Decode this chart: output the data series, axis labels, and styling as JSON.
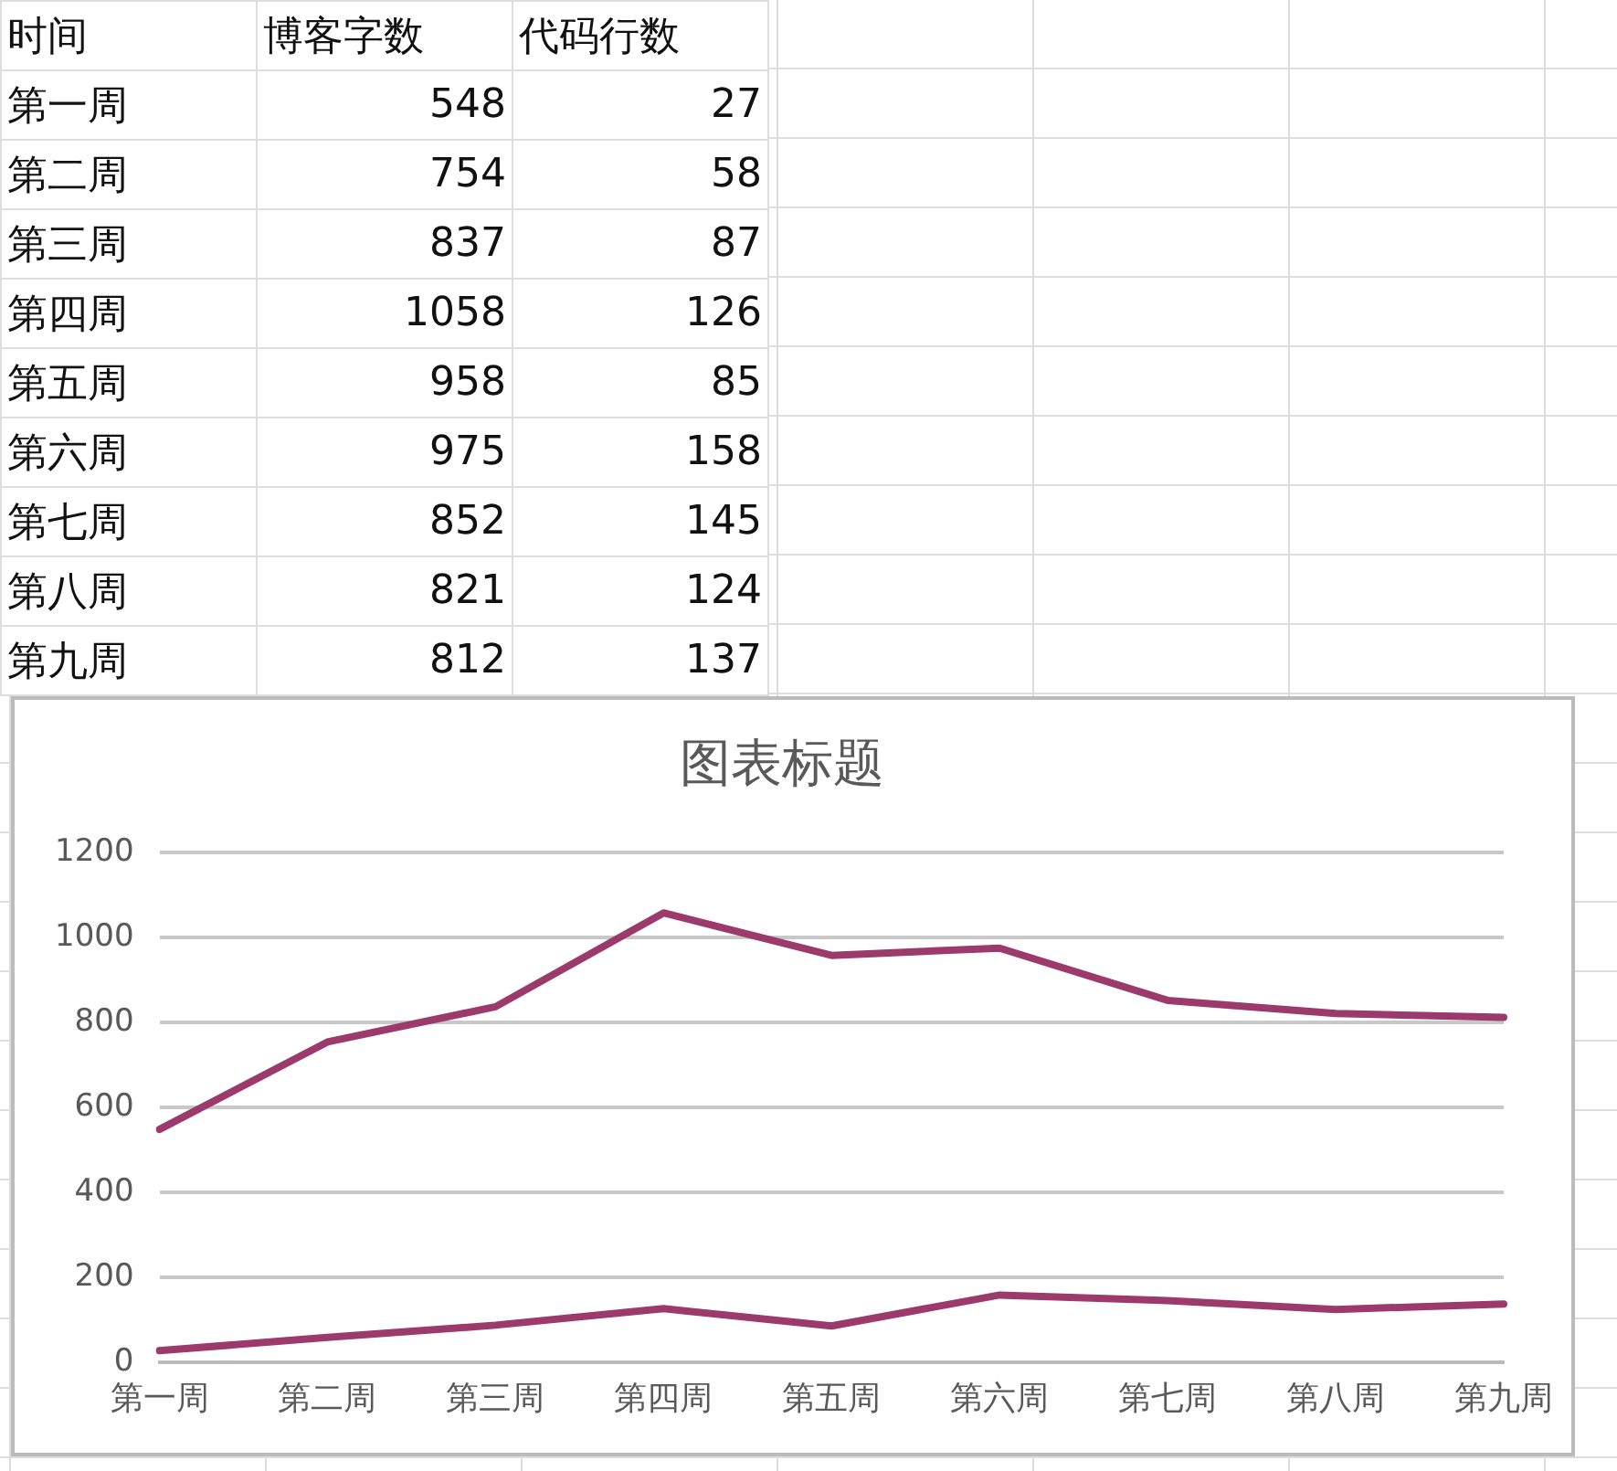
{
  "chart_data": [
    {
      "type": "other",
      "annotations": [
        "时间"
      ],
      "categories": [
        "第一周",
        "第二周",
        "第三周",
        "第四周",
        "第五周",
        "第六周",
        "第七周",
        "第八周",
        "第九周"
      ],
      "series": [
        {
          "name": "博客字数",
          "values": [
            548,
            754,
            837,
            1058,
            958,
            975,
            852,
            821,
            812
          ]
        },
        {
          "name": "代码行数",
          "values": [
            27,
            58,
            87,
            126,
            85,
            158,
            145,
            124,
            137
          ]
        }
      ],
      "data_labels": true
    },
    {
      "type": "line",
      "title": "图表标题",
      "categories": [
        "第一周",
        "第二周",
        "第三周",
        "第四周",
        "第五周",
        "第六周",
        "第七周",
        "第八周",
        "第九周"
      ],
      "series": [
        {
          "color": "#9b3a6b",
          "values": [
            548,
            754,
            837,
            1058,
            958,
            975,
            852,
            821,
            812
          ]
        },
        {
          "color": "#9b3a6b",
          "values": [
            27,
            58,
            87,
            126,
            85,
            158,
            145,
            124,
            137
          ]
        }
      ],
      "ylim": [
        0,
        1200
      ],
      "yticks": [
        0,
        200,
        400,
        600,
        800,
        1000,
        1200
      ],
      "grid": "y",
      "legend": false,
      "marker": "none",
      "line_style": "solid"
    }
  ]
}
